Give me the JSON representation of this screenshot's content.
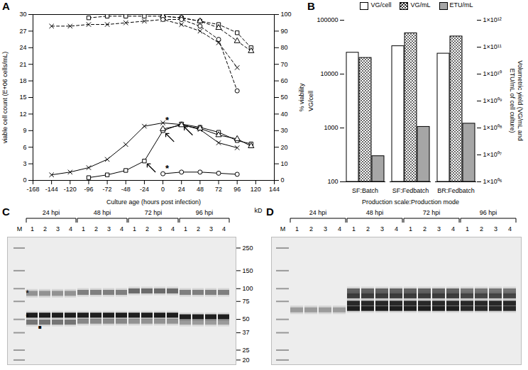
{
  "chart_data": [
    {
      "type": "line",
      "title": "A",
      "xlabel": "Culture age (hours post infection)",
      "ylabel": "viable cell count (E+06 cells/mL)",
      "y2label": "% viability",
      "xlim": [
        -168,
        144
      ],
      "xticks": [
        -168,
        -144,
        -120,
        -96,
        -72,
        -48,
        -24,
        0,
        24,
        48,
        72,
        96,
        120,
        144
      ],
      "ylim": [
        0,
        30
      ],
      "yticks": [
        0,
        3,
        6,
        9,
        12,
        15,
        18,
        21,
        24,
        27,
        30
      ],
      "y2lim": [
        0,
        100
      ],
      "y2ticks": [
        0,
        10,
        20,
        30,
        40,
        50,
        60,
        70,
        80,
        90,
        100
      ],
      "series": [
        {
          "x": [
            -144,
            -120,
            -96,
            -72,
            -48,
            -24,
            0,
            24,
            48,
            72,
            96
          ],
          "values": [
            1,
            1.5,
            2.3,
            3.8,
            6.5,
            9.8,
            10.4,
            10.1,
            9.2,
            6.8,
            5.9
          ],
          "marker": "x",
          "line_style": "solid",
          "color": "#000000"
        },
        {
          "x": [
            -96,
            -72,
            -48,
            -24,
            0,
            24,
            48,
            72,
            96,
            114
          ],
          "values": [
            0.5,
            1,
            1.8,
            3.5,
            9,
            10.2,
            9.6,
            8.7,
            7.2,
            6.6
          ],
          "marker": "square",
          "line_style": "solid",
          "color": "#000000"
        },
        {
          "x": [
            0,
            24,
            48,
            72,
            96,
            114
          ],
          "values": [
            9.3,
            10,
            9.4,
            8.2,
            7.5,
            6.2
          ],
          "marker": "triangle",
          "line_style": "solid",
          "color": "#000000"
        },
        {
          "x": [
            0,
            24,
            48,
            72,
            96
          ],
          "values": [
            1.2,
            1.5,
            1.5,
            1.3,
            1.1
          ],
          "marker": "circle",
          "line_style": "solid",
          "color": "#000000"
        },
        {
          "x": [
            -144,
            -120,
            -96,
            -72,
            -48,
            -24,
            0,
            24,
            48,
            72,
            96
          ],
          "values": [
            93,
            93,
            94,
            94,
            95,
            96,
            97,
            94,
            90,
            83,
            68
          ],
          "marker": "x",
          "line_style": "dashed",
          "color": "#000000",
          "axis": "y2"
        },
        {
          "x": [
            -96,
            -72,
            -48,
            -24,
            0,
            24,
            48,
            72,
            96,
            114
          ],
          "values": [
            98,
            99,
            99,
            99,
            99,
            98,
            96,
            94,
            89,
            80
          ],
          "marker": "square",
          "line_style": "dashed",
          "color": "#000000",
          "axis": "y2"
        },
        {
          "x": [
            0,
            24,
            48,
            72,
            96,
            114
          ],
          "values": [
            99,
            98,
            96,
            92,
            84,
            78
          ],
          "marker": "triangle",
          "line_style": "dashed",
          "color": "#000000",
          "axis": "y2"
        },
        {
          "x": [
            0,
            24,
            48,
            72,
            96
          ],
          "values": [
            97,
            97,
            93,
            85,
            54
          ],
          "marker": "circle",
          "line_style": "dashed",
          "color": "#000000",
          "axis": "y2"
        }
      ],
      "annotations": [
        {
          "x": 0,
          "y": 10.9,
          "text": "*"
        },
        {
          "x": 0,
          "y": 2.1,
          "text": "*"
        }
      ],
      "arrows": [
        {
          "x": -24,
          "y": 3.5
        },
        {
          "x": 0,
          "y": 9
        },
        {
          "x": 24,
          "y": 10.2
        }
      ]
    },
    {
      "type": "bar",
      "title": "B",
      "categories": [
        "SF:Batch",
        "SF:Fedbatch",
        "BR:Fedbatch"
      ],
      "xlabel": "Production scale:Production mode",
      "ylabel": "VG/cell",
      "y2label": "Volumetric yield (VG/mL and ETU/mL of cell culture)",
      "log": true,
      "legend": "top",
      "ylim": [
        100,
        100000
      ],
      "yticks": [
        100,
        1000,
        10000,
        100000
      ],
      "y2lim": [
        1000000,
        1000000000000
      ],
      "y2ticks": [
        {
          "value": 1000000,
          "label": "1×10⁰⁶"
        },
        {
          "value": 10000000,
          "label": "1×10⁰⁷"
        },
        {
          "value": 100000000,
          "label": "1×10⁰⁸"
        },
        {
          "value": 1000000000,
          "label": "1×10⁰⁹"
        },
        {
          "value": 10000000000,
          "label": "1×10¹⁰"
        },
        {
          "value": 100000000000,
          "label": "1×10¹¹"
        },
        {
          "value": 1000000000000,
          "label": "1×10¹²"
        }
      ],
      "series": [
        {
          "name": "VG/cell",
          "color": "#ffffff",
          "values": [
            25000,
            33000,
            24000
          ]
        },
        {
          "name": "VG/mL",
          "color": "#444444",
          "marker": "crosshatch",
          "axis": "y2",
          "values": [
            40000000000,
            330000000000,
            250000000000
          ]
        },
        {
          "name": "ETU/mL",
          "color": "#a6a6a6",
          "axis": "y2",
          "values": [
            9000000,
            110000000,
            145000000
          ]
        }
      ]
    },
    {
      "type": "blot",
      "title": "C",
      "marker_lane": "M",
      "groups": [
        {
          "label": "24 hpi",
          "lanes": [
            "1",
            "2",
            "3",
            "4"
          ]
        },
        {
          "label": "48 hpi",
          "lanes": [
            "1",
            "2",
            "3",
            "4"
          ]
        },
        {
          "label": "72 hpi",
          "lanes": [
            "1",
            "2",
            "3",
            "4"
          ]
        },
        {
          "label": "96 hpi",
          "lanes": [
            "1",
            "2",
            "3",
            "4"
          ]
        }
      ],
      "ylim": [
        18,
        320
      ],
      "yticks": [
        250,
        150,
        100,
        75,
        50,
        37,
        25,
        20
      ],
      "ylabel": "kD",
      "marker_bands": [
        250,
        150,
        100,
        75,
        50,
        37,
        25,
        20
      ],
      "bands": [
        {
          "group": "24 hpi",
          "kD": 90,
          "level": 0.35
        },
        {
          "group": "24 hpi",
          "kD": 55,
          "level": 0.95
        },
        {
          "group": "24 hpi",
          "kD": 47,
          "level": 0.5
        },
        {
          "group": "48 hpi",
          "kD": 92,
          "level": 0.45
        },
        {
          "group": "48 hpi",
          "kD": 55,
          "level": 0.95
        },
        {
          "group": "48 hpi",
          "kD": 48,
          "level": 0.4
        },
        {
          "group": "72 hpi",
          "kD": 95,
          "level": 0.55
        },
        {
          "group": "72 hpi",
          "kD": 55,
          "level": 0.95
        },
        {
          "group": "72 hpi",
          "kD": 48,
          "level": 0.35
        },
        {
          "group": "96 hpi",
          "kD": 92,
          "level": 0.45
        },
        {
          "group": "96 hpi",
          "kD": 53,
          "level": 0.95
        },
        {
          "group": "96 hpi",
          "kD": 47,
          "level": 0.3
        }
      ],
      "annotations": [
        {
          "lane": "M",
          "kD": 90,
          "text": "*"
        },
        {
          "lane": "M",
          "kD": 52,
          "text": "*"
        },
        {
          "group": "24 hpi",
          "lane": "2",
          "kD": 45,
          "text": "■"
        }
      ]
    },
    {
      "type": "blot",
      "title": "D",
      "marker_lane": "M",
      "groups": [
        {
          "label": "24 hpi",
          "lanes": [
            "1",
            "2",
            "3",
            "4"
          ]
        },
        {
          "label": "48 hpi",
          "lanes": [
            "1",
            "2",
            "3",
            "4"
          ]
        },
        {
          "label": "72 hpi",
          "lanes": [
            "1",
            "2",
            "3",
            "4"
          ]
        },
        {
          "label": "96 hpi",
          "lanes": [
            "1",
            "2",
            "3",
            "4"
          ]
        }
      ],
      "ylim": [
        18,
        320
      ],
      "tick_labels": false,
      "marker_bands": [
        250,
        150,
        100,
        75,
        50,
        37,
        25,
        20
      ],
      "bands": [
        {
          "group": "24 hpi",
          "kD": 62,
          "level": 0.3
        },
        {
          "group": "48 hpi",
          "kD": 95,
          "level": 0.6
        },
        {
          "group": "48 hpi",
          "kD": 85,
          "level": 0.8
        },
        {
          "group": "48 hpi",
          "kD": 72,
          "level": 0.9
        },
        {
          "group": "48 hpi",
          "kD": 64,
          "level": 0.95
        },
        {
          "group": "72 hpi",
          "kD": 95,
          "level": 0.6
        },
        {
          "group": "72 hpi",
          "kD": 85,
          "level": 0.8
        },
        {
          "group": "72 hpi",
          "kD": 72,
          "level": 0.9
        },
        {
          "group": "72 hpi",
          "kD": 64,
          "level": 0.95
        },
        {
          "group": "96 hpi",
          "kD": 95,
          "level": 0.5
        },
        {
          "group": "96 hpi",
          "kD": 85,
          "level": 0.75
        },
        {
          "group": "96 hpi",
          "kD": 72,
          "level": 0.9
        },
        {
          "group": "96 hpi",
          "kD": 64,
          "level": 0.9
        }
      ],
      "annotations": []
    }
  ]
}
